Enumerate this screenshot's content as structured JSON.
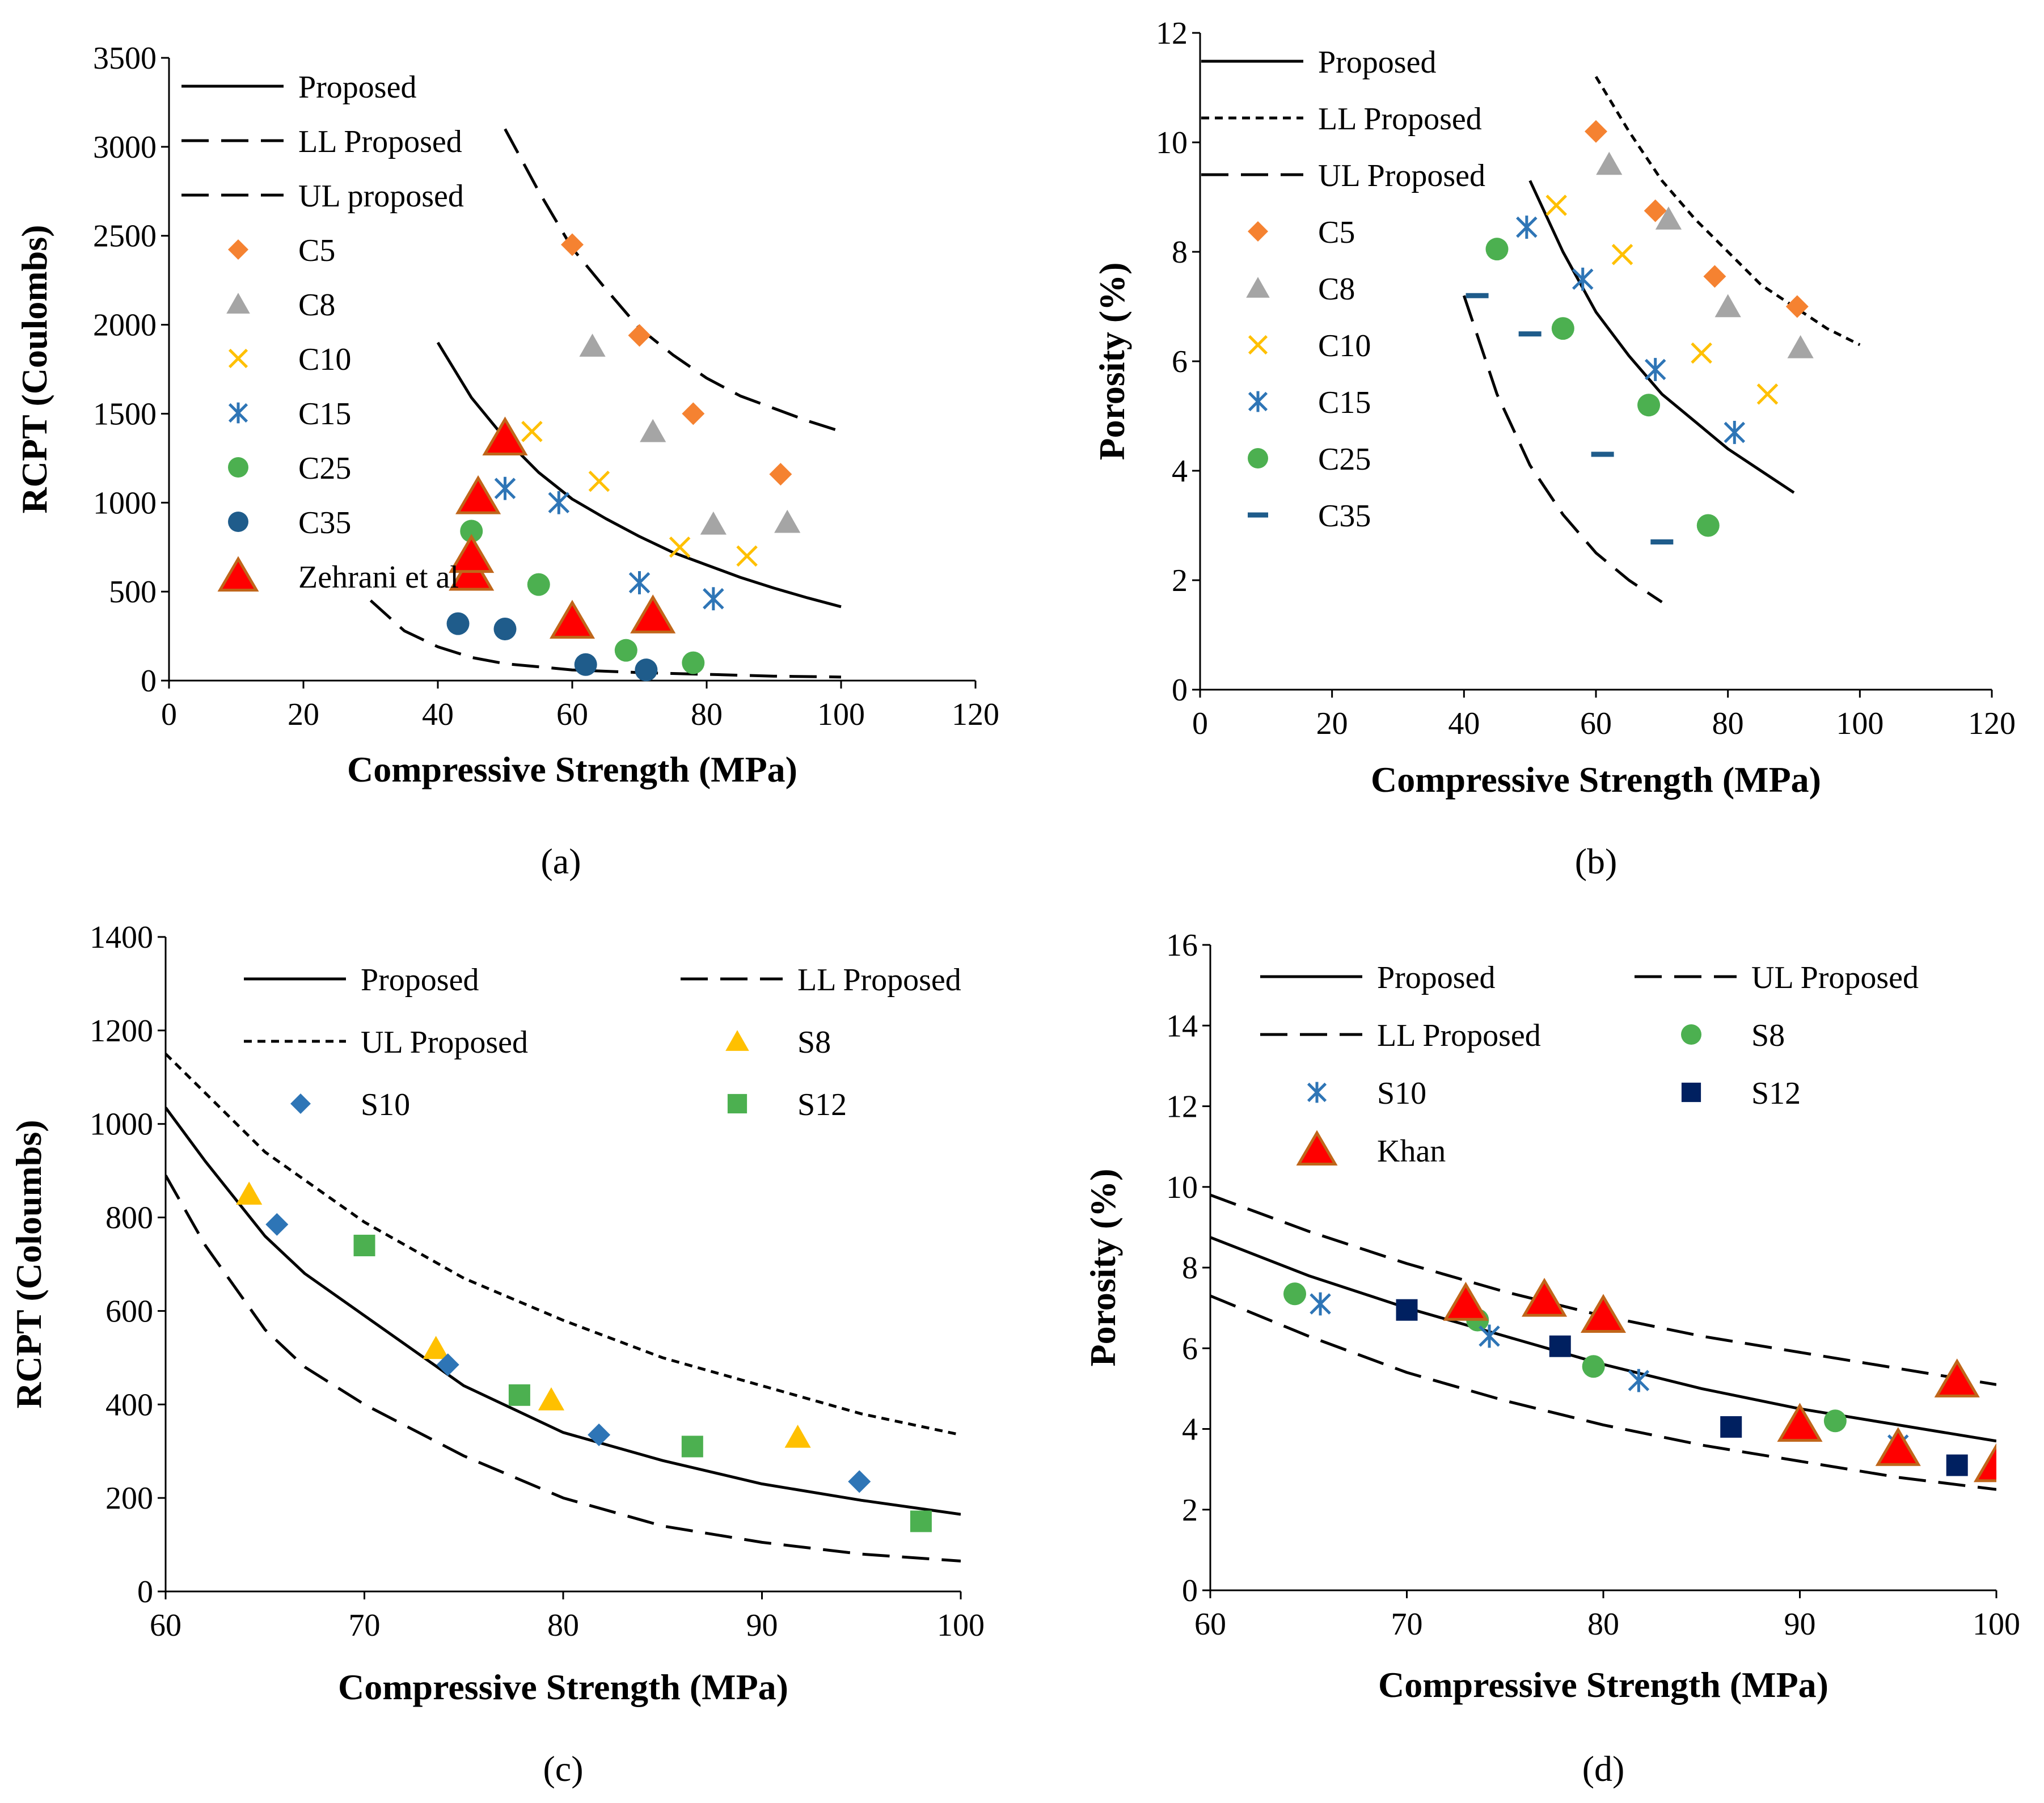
{
  "figure": {
    "background": "#ffffff"
  },
  "chart_data": [
    {
      "id": "a",
      "type": "scatter",
      "panel_label": "(a)",
      "xlabel": "Compressive Strength (MPa)",
      "ylabel": "RCPT (Coulombs)",
      "xlim": [
        0,
        120
      ],
      "ylim": [
        0,
        3500
      ],
      "xticks": [
        0,
        20,
        40,
        60,
        80,
        100,
        120
      ],
      "yticks": [
        0,
        500,
        1000,
        1500,
        2000,
        2500,
        3000,
        3500
      ],
      "legend_position": "top-left",
      "legend_columns": 1,
      "lines": [
        {
          "name": "Proposed",
          "dash": "solid",
          "x": [
            40,
            45,
            50,
            55,
            60,
            65,
            70,
            75,
            80,
            85,
            90,
            95,
            100
          ],
          "y": [
            1900,
            1590,
            1360,
            1170,
            1020,
            910,
            810,
            720,
            650,
            580,
            520,
            465,
            415
          ]
        },
        {
          "name": "LL Proposed",
          "dash": "long",
          "x": [
            50,
            55,
            60,
            65,
            70,
            75,
            80,
            85,
            90,
            95,
            100
          ],
          "y": [
            3100,
            2750,
            2430,
            2200,
            1980,
            1830,
            1700,
            1600,
            1530,
            1460,
            1400
          ]
        },
        {
          "name": "UL proposed",
          "dash": "long",
          "x": [
            30,
            35,
            40,
            45,
            50,
            60,
            70,
            80,
            90,
            100
          ],
          "y": [
            450,
            280,
            190,
            130,
            95,
            60,
            45,
            35,
            25,
            20
          ]
        }
      ],
      "points": [
        {
          "name": "C5",
          "marker": "diamond",
          "color": "#F58231",
          "x": [
            60,
            70,
            78,
            91
          ],
          "y": [
            2450,
            1940,
            1500,
            1160
          ]
        },
        {
          "name": "C8",
          "marker": "triangle",
          "color": "#A5A5A5",
          "x": [
            63,
            72,
            81,
            92
          ],
          "y": [
            1880,
            1400,
            880,
            890
          ]
        },
        {
          "name": "C10",
          "marker": "x",
          "color": "#FFC000",
          "x": [
            54,
            64,
            76,
            86
          ],
          "y": [
            1400,
            1120,
            750,
            700
          ]
        },
        {
          "name": "C15",
          "marker": "asterisk",
          "color": "#2E75B6",
          "x": [
            50,
            58,
            70,
            81
          ],
          "y": [
            1080,
            1000,
            550,
            460
          ]
        },
        {
          "name": "C25",
          "marker": "circle",
          "color": "#4CB050",
          "x": [
            45,
            55,
            68,
            78
          ],
          "y": [
            840,
            540,
            170,
            100
          ]
        },
        {
          "name": "C35",
          "marker": "circle",
          "color": "#1F5C8B",
          "x": [
            43,
            50,
            62,
            71
          ],
          "y": [
            320,
            290,
            90,
            60
          ]
        },
        {
          "name": "Zehrani et al",
          "marker": "big-triangle",
          "color": "#FF0000",
          "x": [
            45,
            45,
            46,
            50,
            60,
            72
          ],
          "y": [
            600,
            700,
            1030,
            1360,
            330,
            360
          ]
        }
      ]
    },
    {
      "id": "b",
      "type": "scatter",
      "panel_label": "(b)",
      "xlabel": "Compressive Strength (MPa)",
      "ylabel": "Porosity (%)",
      "xlim": [
        0,
        120
      ],
      "ylim": [
        0,
        12
      ],
      "xticks": [
        0,
        20,
        40,
        60,
        80,
        100,
        120
      ],
      "yticks": [
        0,
        2,
        4,
        6,
        8,
        10,
        12
      ],
      "legend_position": "top-left",
      "legend_columns": 1,
      "lines": [
        {
          "name": "Proposed",
          "dash": "solid",
          "x": [
            50,
            55,
            60,
            65,
            70,
            75,
            80,
            85,
            90
          ],
          "y": [
            9.3,
            8.0,
            6.9,
            6.1,
            5.4,
            4.9,
            4.4,
            4.0,
            3.6
          ]
        },
        {
          "name": "LL Proposed",
          "dash": "short",
          "x": [
            60,
            65,
            70,
            75,
            80,
            85,
            90,
            95,
            100
          ],
          "y": [
            11.2,
            10.2,
            9.3,
            8.6,
            8.0,
            7.4,
            7.0,
            6.6,
            6.3
          ]
        },
        {
          "name": "UL Proposed",
          "dash": "long",
          "x": [
            40,
            45,
            50,
            55,
            60,
            65,
            70
          ],
          "y": [
            7.2,
            5.4,
            4.1,
            3.2,
            2.5,
            2.0,
            1.6
          ]
        }
      ],
      "points": [
        {
          "name": "C5",
          "marker": "diamond",
          "color": "#F58231",
          "x": [
            60,
            69,
            78,
            90.5
          ],
          "y": [
            10.2,
            8.75,
            7.55,
            7.0
          ]
        },
        {
          "name": "C8",
          "marker": "triangle",
          "color": "#A5A5A5",
          "x": [
            62,
            71,
            80,
            91
          ],
          "y": [
            9.6,
            8.6,
            7.0,
            6.25
          ]
        },
        {
          "name": "C10",
          "marker": "x",
          "color": "#FFC000",
          "x": [
            54,
            64,
            76,
            86
          ],
          "y": [
            8.85,
            7.95,
            6.15,
            5.4
          ]
        },
        {
          "name": "C15",
          "marker": "asterisk",
          "color": "#2E75B6",
          "x": [
            49.5,
            58,
            69,
            81
          ],
          "y": [
            8.45,
            7.5,
            5.85,
            4.7
          ]
        },
        {
          "name": "C25",
          "marker": "circle",
          "color": "#4CB050",
          "x": [
            45,
            55,
            68,
            77
          ],
          "y": [
            8.05,
            6.6,
            5.2,
            3.0
          ]
        },
        {
          "name": "C35",
          "marker": "dash",
          "color": "#1F5C8B",
          "x": [
            42,
            50,
            61,
            70
          ],
          "y": [
            7.2,
            6.5,
            4.3,
            2.7
          ]
        }
      ]
    },
    {
      "id": "c",
      "type": "scatter",
      "panel_label": "(c)",
      "xlabel": "Compressive Strength (MPa)",
      "ylabel": "RCPT (Coloumbs)",
      "xlim": [
        60,
        100
      ],
      "ylim": [
        0,
        1400
      ],
      "xticks": [
        60,
        70,
        80,
        90,
        100
      ],
      "yticks": [
        0,
        200,
        400,
        600,
        800,
        1000,
        1200,
        1400
      ],
      "legend_position": "top",
      "legend_columns": 2,
      "lines": [
        {
          "name": "Proposed",
          "dash": "solid",
          "x": [
            60,
            62,
            65,
            67,
            70,
            75,
            80,
            85,
            90,
            95,
            100
          ],
          "y": [
            1035,
            920,
            760,
            680,
            590,
            440,
            340,
            280,
            230,
            195,
            165
          ]
        },
        {
          "name": "LL Proposed",
          "dash": "long",
          "x": [
            60,
            62,
            65,
            67,
            70,
            75,
            80,
            85,
            90,
            95,
            100
          ],
          "y": [
            890,
            740,
            560,
            480,
            400,
            290,
            200,
            140,
            105,
            80,
            65
          ]
        },
        {
          "name": "UL Proposed",
          "dash": "short",
          "x": [
            60,
            65,
            70,
            75,
            80,
            85,
            90,
            95,
            100
          ],
          "y": [
            1150,
            940,
            790,
            670,
            580,
            500,
            440,
            380,
            335
          ]
        }
      ],
      "points": [
        {
          "name": "S8",
          "marker": "triangle",
          "color": "#FFC000",
          "x": [
            64.2,
            73.6,
            79.4,
            91.8
          ],
          "y": [
            850,
            520,
            410,
            330
          ]
        },
        {
          "name": "S10",
          "marker": "diamond",
          "color": "#2E75B6",
          "x": [
            65.6,
            74.2,
            81.8,
            94.9
          ],
          "y": [
            785,
            485,
            335,
            235
          ]
        },
        {
          "name": "S12",
          "marker": "square",
          "color": "#4CB050",
          "x": [
            70,
            77.8,
            86.5,
            98
          ],
          "y": [
            740,
            420,
            310,
            150
          ]
        }
      ]
    },
    {
      "id": "d",
      "type": "scatter",
      "panel_label": "(d)",
      "xlabel": "Compressive Strength (MPa)",
      "ylabel": "Porosity (%)",
      "xlim": [
        60,
        100
      ],
      "ylim": [
        0,
        16
      ],
      "xticks": [
        60,
        70,
        80,
        90,
        100
      ],
      "yticks": [
        0,
        2,
        4,
        6,
        8,
        10,
        12,
        14,
        16
      ],
      "legend_position": "top",
      "legend_columns": 2,
      "lines": [
        {
          "name": "Proposed",
          "dash": "solid",
          "x": [
            60,
            65,
            70,
            75,
            80,
            85,
            90,
            95,
            100
          ],
          "y": [
            8.75,
            7.8,
            7.0,
            6.3,
            5.6,
            5.0,
            4.5,
            4.1,
            3.7
          ]
        },
        {
          "name": "UL Proposed",
          "dash": "long",
          "x": [
            60,
            65,
            70,
            75,
            80,
            85,
            90,
            95,
            100
          ],
          "y": [
            9.8,
            8.9,
            8.1,
            7.4,
            6.8,
            6.3,
            5.9,
            5.5,
            5.1
          ]
        },
        {
          "name": "LL Proposed",
          "dash": "long",
          "x": [
            60,
            65,
            70,
            75,
            80,
            85,
            90,
            95,
            100
          ],
          "y": [
            7.3,
            6.3,
            5.4,
            4.7,
            4.1,
            3.6,
            3.2,
            2.8,
            2.5
          ]
        }
      ],
      "points": [
        {
          "name": "S8",
          "marker": "circle",
          "color": "#4CB050",
          "x": [
            64.3,
            73.6,
            79.5,
            91.8
          ],
          "y": [
            7.35,
            6.7,
            5.55,
            4.2
          ]
        },
        {
          "name": "S10",
          "marker": "asterisk",
          "color": "#2E75B6",
          "x": [
            65.6,
            74.2,
            81.8,
            95
          ],
          "y": [
            7.1,
            6.3,
            5.2,
            3.6
          ]
        },
        {
          "name": "S12",
          "marker": "square",
          "color": "#002060",
          "x": [
            70,
            77.8,
            86.5,
            98
          ],
          "y": [
            6.95,
            6.05,
            4.05,
            3.1
          ]
        },
        {
          "name": "Khan",
          "marker": "big-triangle",
          "color": "#FF0000",
          "x": [
            73,
            77,
            80,
            90,
            95,
            98,
            100
          ],
          "y": [
            7.1,
            7.2,
            6.8,
            4.1,
            3.5,
            5.2,
            3.1
          ]
        }
      ]
    }
  ]
}
